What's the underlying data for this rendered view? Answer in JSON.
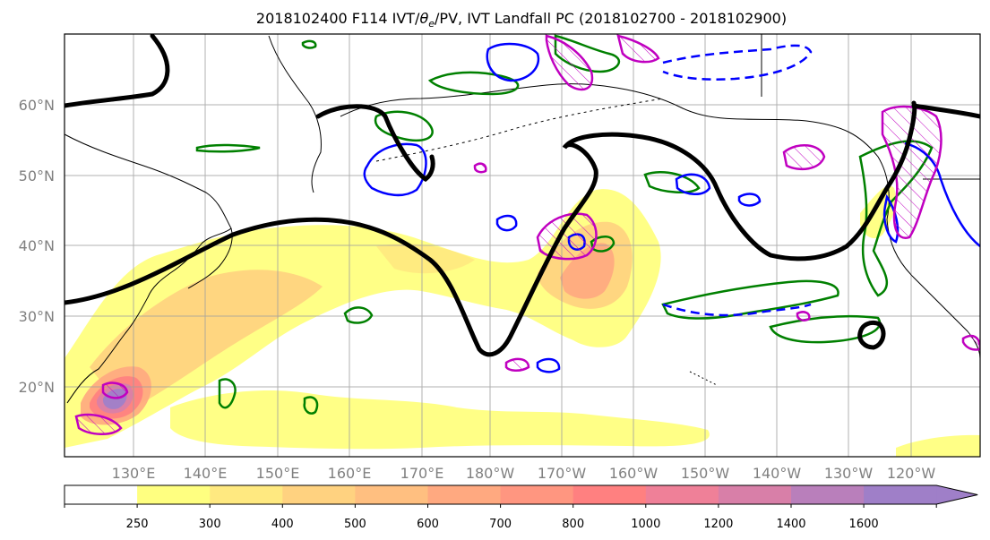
{
  "title": "2018102400 F114 IVT/θe/PV, IVT Landfall PC (2018102700 - 2018102900)",
  "title_parts": {
    "prefix": "2018102400 F114 IVT/",
    "theta": "θ",
    "theta_sub": "e",
    "suffix": "/PV, IVT Landfall PC (2018102700 - 2018102900)"
  },
  "map": {
    "lat_labels": [
      "60°N",
      "50°N",
      "40°N",
      "30°N",
      "20°N"
    ],
    "lon_labels": [
      "130°E",
      "140°E",
      "150°E",
      "160°E",
      "170°E",
      "180°W",
      "170°W",
      "160°W",
      "150°W",
      "140°W",
      "130°W",
      "120°W"
    ],
    "gridline_color": "#9e9e9e",
    "land_outline_color": "#000000"
  },
  "colorbar": {
    "tick_labels": [
      "250",
      "300",
      "400",
      "500",
      "600",
      "700",
      "800",
      "1000",
      "1200",
      "1400",
      "1600"
    ],
    "colors": [
      "#ffffff",
      "#ffff80",
      "#ffe980",
      "#ffd280",
      "#ffbf80",
      "#ffa980",
      "#ff9680",
      "#ff8080",
      "#ef8098",
      "#d87fa8",
      "#b97fbb",
      "#9f7fc8"
    ],
    "extend": "max"
  },
  "legend_colors": {
    "ivt_fill_low": "#ffff80",
    "ivt_fill_mid": "#ffbf80",
    "ivt_fill_high": "#ff8080",
    "ivt_fill_peak": "#9f7fc8",
    "theta_e_contour": "#000000",
    "pv_positive": "#008000",
    "pv_negative": "#0000ff",
    "landfall_pc": "#c000c0"
  }
}
